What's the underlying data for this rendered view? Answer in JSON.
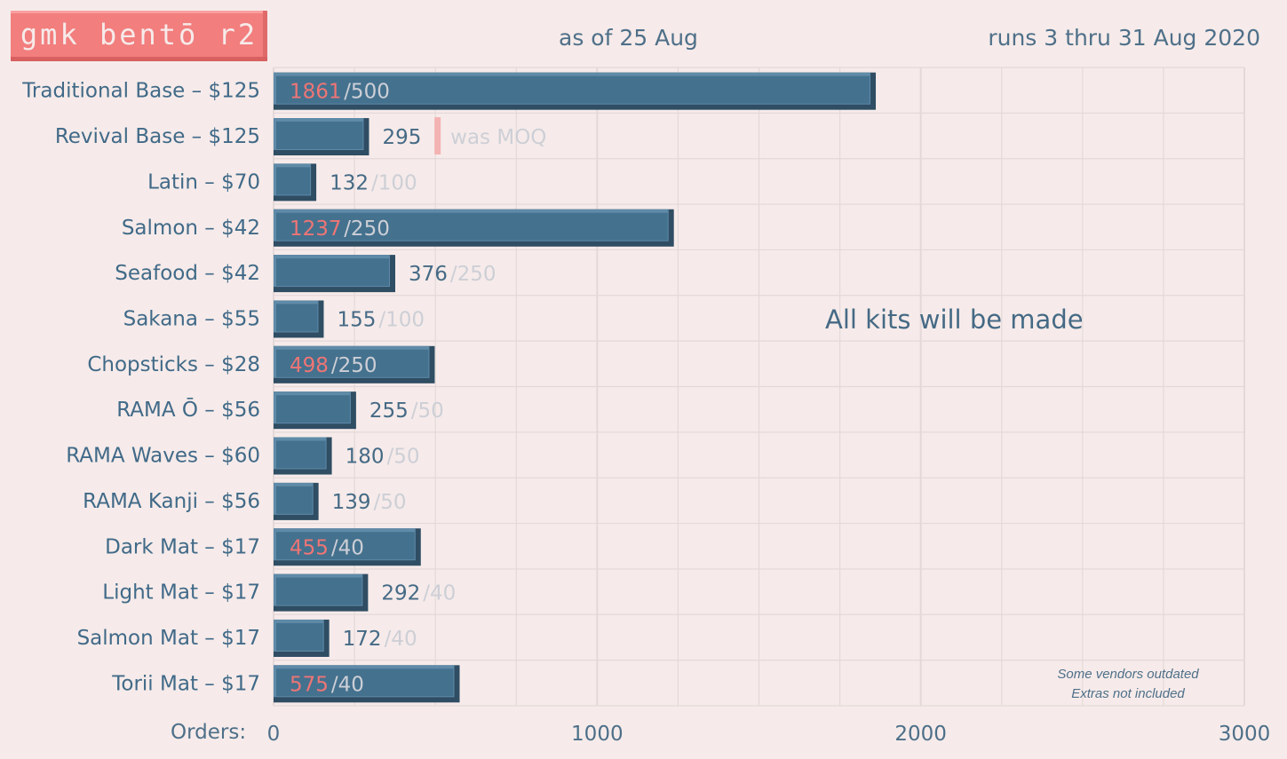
{
  "logo_text": "gmk bentō r2",
  "header": {
    "as_of": "as of 25 Aug",
    "runs": "runs 3 thru 31 Aug 2020"
  },
  "chart_data": {
    "type": "bar",
    "orientation": "horizontal",
    "xlabel": "Orders:",
    "xlim": [
      0,
      3000
    ],
    "xticks": [
      0,
      1000,
      2000,
      3000
    ],
    "grid": true,
    "categories": [
      "Traditional Base – $125",
      "Revival Base – $125",
      "Latin – $70",
      "Salmon – $42",
      "Seafood – $42",
      "Sakana – $55",
      "Chopsticks – $28",
      "RAMA Ō – $56",
      "RAMA Waves – $60",
      "RAMA Kanji – $56",
      "Dark Mat – $17",
      "Light Mat – $17",
      "Salmon Mat – $17",
      "Torii Mat – $17"
    ],
    "values": [
      1861,
      295,
      132,
      1237,
      376,
      155,
      498,
      255,
      180,
      139,
      455,
      292,
      172,
      575
    ],
    "moq": [
      500,
      500,
      100,
      250,
      250,
      100,
      250,
      50,
      50,
      50,
      40,
      40,
      40,
      40
    ],
    "moq_labels": [
      "/500",
      "",
      "/100",
      "/250",
      "/250",
      "/100",
      "/250",
      "/50",
      "/50",
      "/50",
      "/40",
      "/40",
      "/40",
      "/40"
    ],
    "moq_marker_label": "was MOQ",
    "annotation": "All kits will be made",
    "footnotes": [
      "Some vendors outdated",
      "Extras not included"
    ],
    "colors": {
      "bar": "#44718e",
      "bar_top": "#5f8aa8",
      "bar_shade": "#2f4d63",
      "count_over": "#ef7575",
      "count_under": "#456a85",
      "moq": "#cdcfd6",
      "moq_marker": "#f4b3b3",
      "grid": "#e4d9d8"
    }
  }
}
